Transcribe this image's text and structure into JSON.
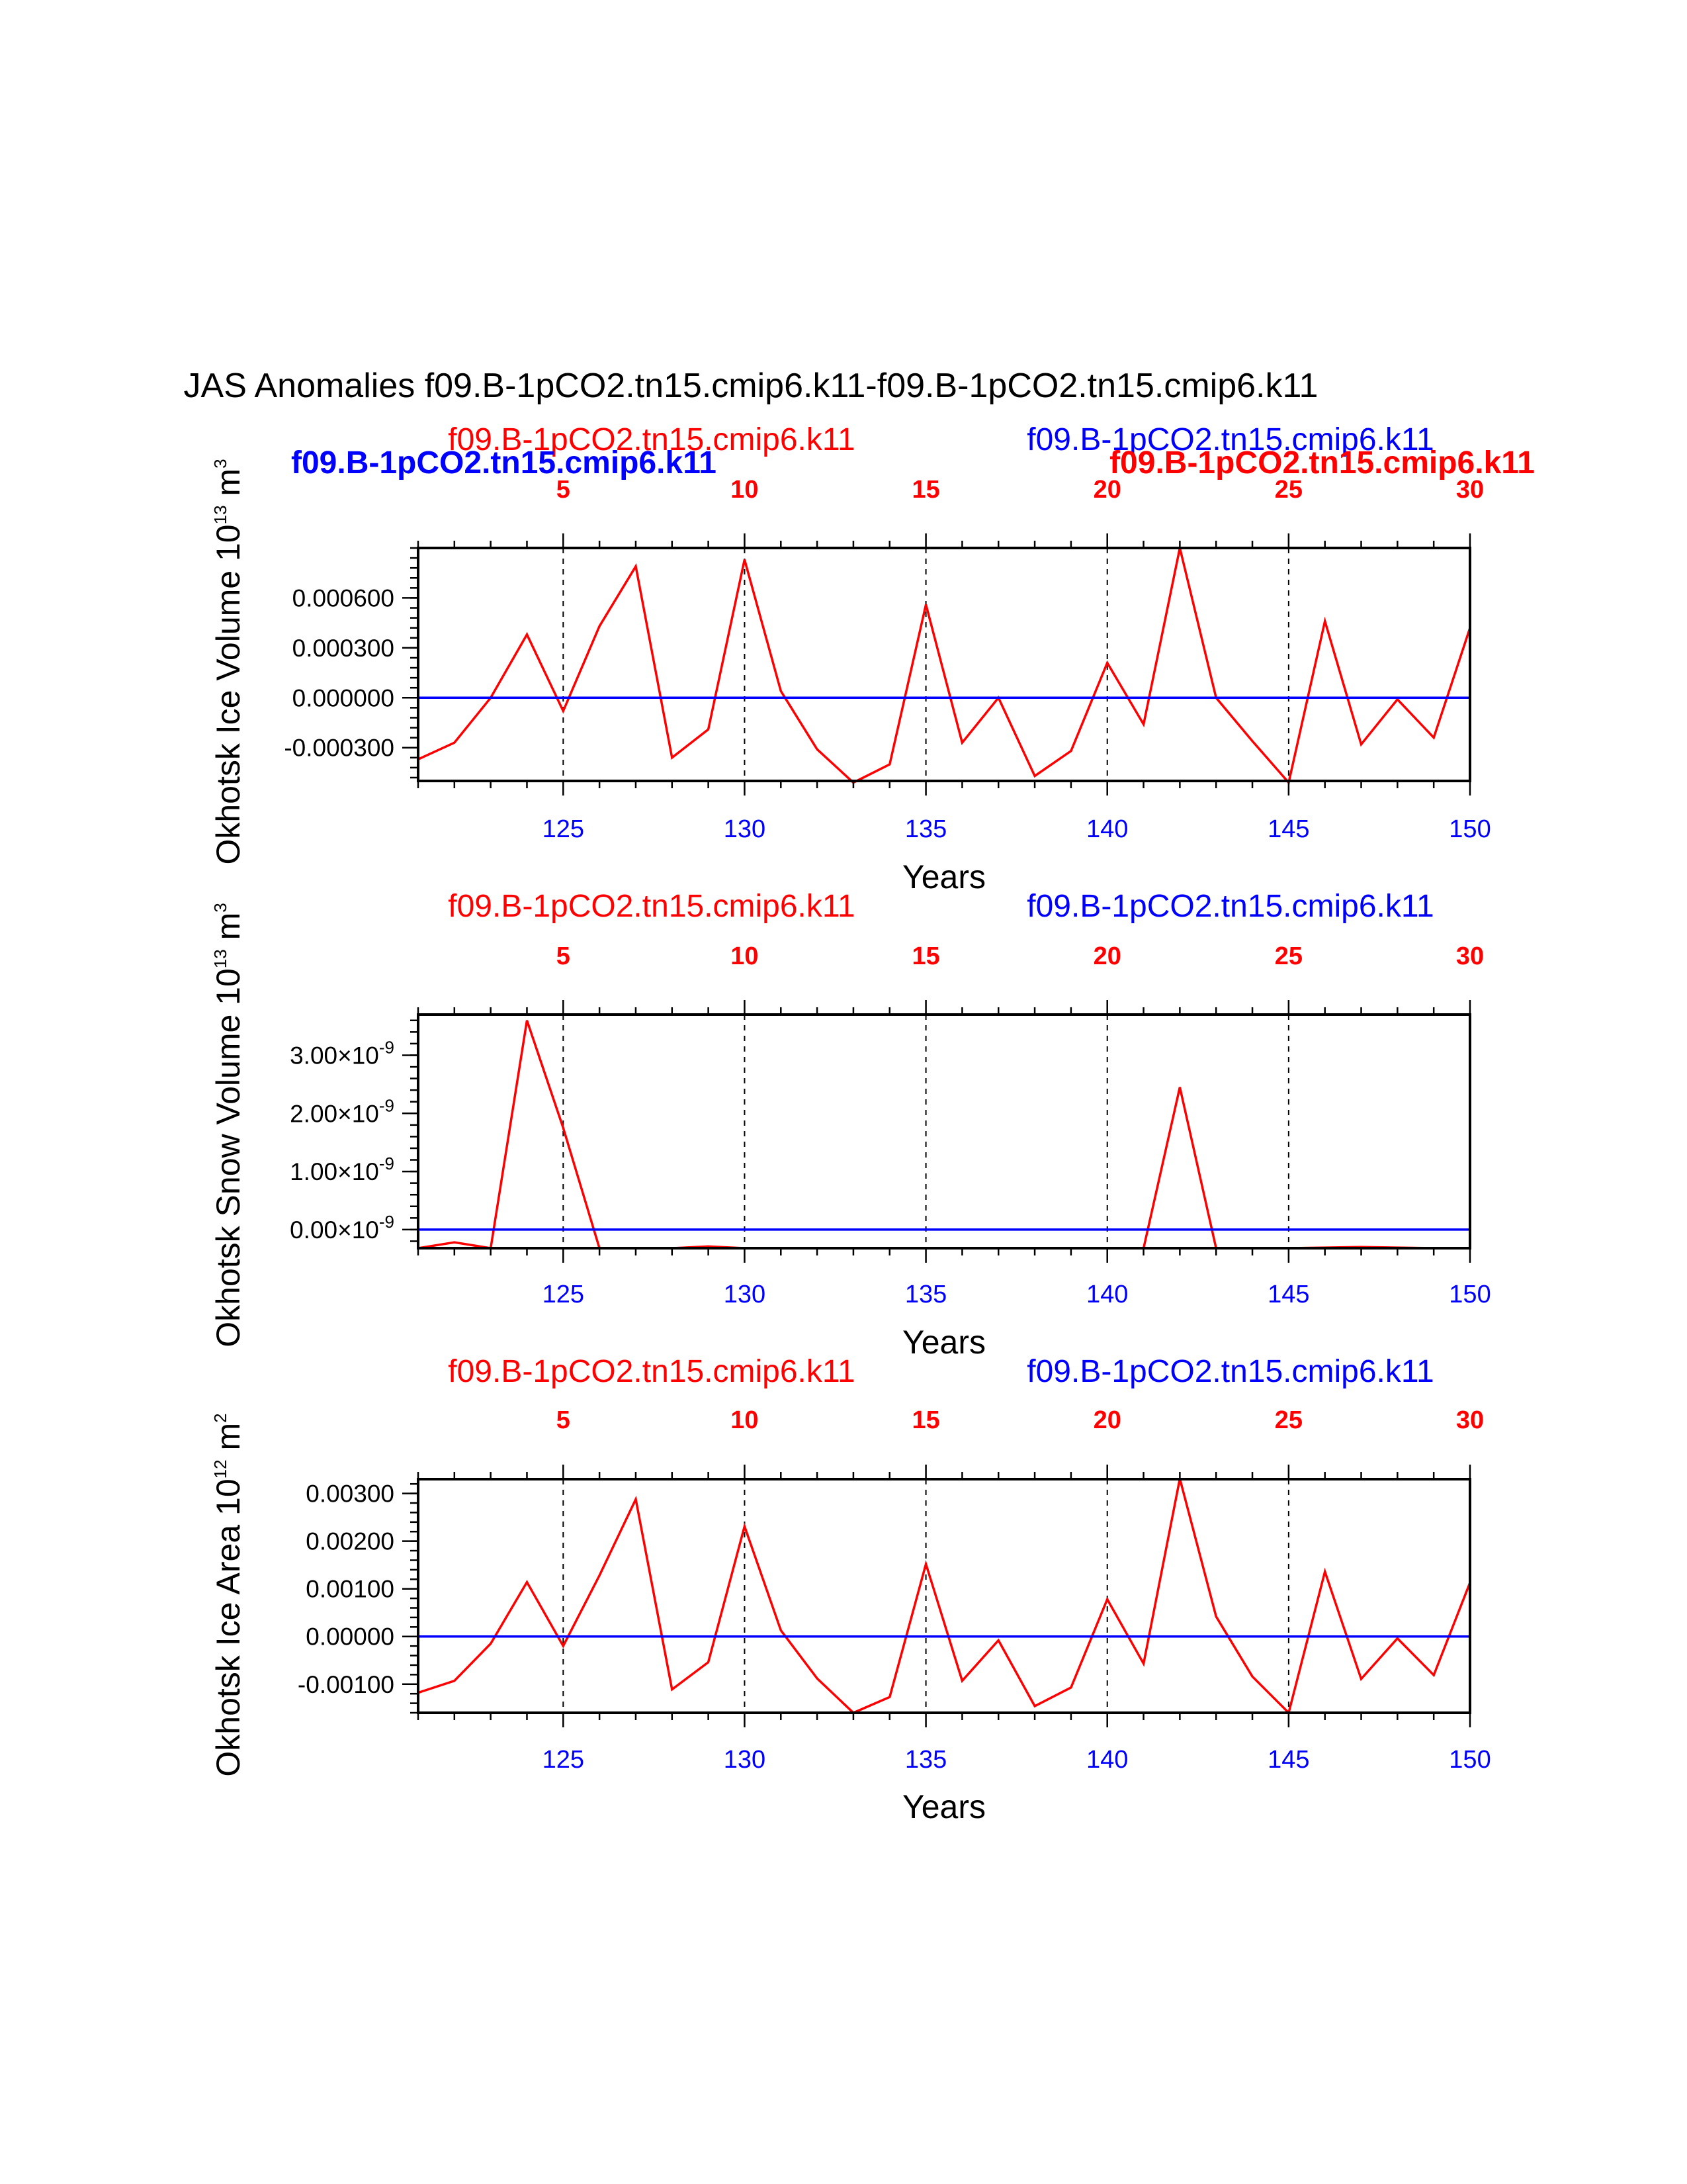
{
  "figure_title": "JAS Anomalies f09.B-1pCO2.tn15.cmip6.k11-f09.B-1pCO2.tn15.cmip6.k11",
  "overlay_labels": {
    "left_blue_bold": "f09.B-1pCO2.tn15.cmip6.k11",
    "right_red_bold": "f09.B-1pCO2.tn15.cmip6.k11"
  },
  "colors": {
    "case1": "#ff0000",
    "case2": "#0000ff",
    "axis": "#000000"
  },
  "chart_data": [
    {
      "type": "line",
      "left_label": "f09.B-1pCO2.tn15.cmip6.k11",
      "right_label": "f09.B-1pCO2.tn15.cmip6.k11",
      "ylabel": "Okhotsk Ice Volume 10^13 m^3",
      "ylabel_parts": {
        "main": "Okhotsk Ice Volume 10",
        "exp": "13",
        "unit": " m",
        "unit_exp": "3"
      },
      "xlabel": "Years",
      "x": [
        121,
        122,
        123,
        124,
        125,
        126,
        127,
        128,
        129,
        130,
        131,
        132,
        133,
        134,
        135,
        136,
        137,
        138,
        139,
        140,
        141,
        142,
        143,
        144,
        145,
        146,
        147,
        148,
        149,
        150
      ],
      "xlim": [
        121,
        150
      ],
      "ylim": [
        -0.0005,
        0.0009
      ],
      "xticks_bottom": [
        "125",
        "130",
        "135",
        "140",
        "145",
        "150"
      ],
      "xticks_top": [
        "5",
        "10",
        "15",
        "20",
        "25",
        "30"
      ],
      "yticks": [
        "0.000600",
        "0.000300",
        "0.000000",
        "-0.000300"
      ],
      "yticks_values": [
        0.0006,
        0.0003,
        0.0,
        -0.0003
      ],
      "series": [
        {
          "name": "f09.B-1pCO2.tn15.cmip6.k11 (red)",
          "color": "#ff0000",
          "values": [
            -0.00037,
            -0.00027,
            0.0,
            0.00038,
            -8e-05,
            0.00043,
            0.00079,
            -0.00036,
            -0.00019,
            0.00083,
            4e-05,
            -0.00031,
            -0.00051,
            -0.0004,
            0.00056,
            -0.00027,
            0.0,
            -0.00047,
            -0.00032,
            0.00021,
            -0.00016,
            0.0009,
            0.0,
            -0.00026,
            -0.00051,
            0.00046,
            -0.00028,
            -1e-05,
            -0.00024,
            0.00042
          ]
        },
        {
          "name": "f09.B-1pCO2.tn15.cmip6.k11 (blue)",
          "color": "#0000ff",
          "values": [
            0,
            0,
            0,
            0,
            0,
            0,
            0,
            0,
            0,
            0,
            0,
            0,
            0,
            0,
            0,
            0,
            0,
            0,
            0,
            0,
            0,
            0,
            0,
            0,
            0,
            0,
            0,
            0,
            0,
            0
          ]
        }
      ]
    },
    {
      "type": "line",
      "left_label": "f09.B-1pCO2.tn15.cmip6.k11",
      "right_label": "f09.B-1pCO2.tn15.cmip6.k11",
      "ylabel": "Okhotsk Snow Volume 10^13 m^3",
      "ylabel_parts": {
        "main": "Okhotsk Snow Volume 10",
        "exp": "13",
        "unit": " m",
        "unit_exp": "3"
      },
      "xlabel": "Years",
      "x": [
        121,
        122,
        123,
        124,
        125,
        126,
        127,
        128,
        129,
        130,
        131,
        132,
        133,
        134,
        135,
        136,
        137,
        138,
        139,
        140,
        141,
        142,
        143,
        144,
        145,
        146,
        147,
        148,
        149,
        150
      ],
      "xlim": [
        121,
        150
      ],
      "ylim": [
        -3.2e-10,
        3.7e-09
      ],
      "xticks_bottom": [
        "125",
        "130",
        "135",
        "140",
        "145",
        "150"
      ],
      "xticks_top": [
        "5",
        "10",
        "15",
        "20",
        "25",
        "30"
      ],
      "yticks": [
        "3.00×10",
        "2.00×10",
        "1.00×10",
        "0.00×10"
      ],
      "yticks_exp": "-9",
      "yticks_values": [
        3e-09,
        2e-09,
        1e-09,
        0
      ],
      "series": [
        {
          "name": "f09.B-1pCO2.tn15.cmip6.k11 (red)",
          "color": "#ff0000",
          "values": [
            -3.2e-10,
            -2.2e-10,
            -3.2e-10,
            3.6e-09,
            1.75e-09,
            -3.2e-10,
            -3.2e-10,
            -3.2e-10,
            -2.9e-10,
            -3.2e-10,
            -3.2e-10,
            -3.2e-10,
            -3.2e-10,
            -3.2e-10,
            -3.2e-10,
            -3.2e-10,
            -3.2e-10,
            -3.2e-10,
            -3.2e-10,
            -3.2e-10,
            -3.2e-10,
            2.45e-09,
            -3.2e-10,
            -3.2e-10,
            -3.2e-10,
            -3.1e-10,
            -3e-10,
            -3.1e-10,
            -3.2e-10,
            -3.2e-10
          ]
        },
        {
          "name": "f09.B-1pCO2.tn15.cmip6.k11 (blue)",
          "color": "#0000ff",
          "values": [
            0,
            0,
            0,
            0,
            0,
            0,
            0,
            0,
            0,
            0,
            0,
            0,
            0,
            0,
            0,
            0,
            0,
            0,
            0,
            0,
            0,
            0,
            0,
            0,
            0,
            0,
            0,
            0,
            0,
            0
          ]
        }
      ]
    },
    {
      "type": "line",
      "left_label": "f09.B-1pCO2.tn15.cmip6.k11",
      "right_label": "f09.B-1pCO2.tn15.cmip6.k11",
      "ylabel": "Okhotsk Ice Area 10^12 m^2",
      "ylabel_parts": {
        "main": "Okhotsk Ice Area 10",
        "exp": "12",
        "unit": " m",
        "unit_exp": "2"
      },
      "xlabel": "Years",
      "x": [
        121,
        122,
        123,
        124,
        125,
        126,
        127,
        128,
        129,
        130,
        131,
        132,
        133,
        134,
        135,
        136,
        137,
        138,
        139,
        140,
        141,
        142,
        143,
        144,
        145,
        146,
        147,
        148,
        149,
        150
      ],
      "xlim": [
        121,
        150
      ],
      "ylim": [
        -0.0016,
        0.0033
      ],
      "xticks_bottom": [
        "125",
        "130",
        "135",
        "140",
        "145",
        "150"
      ],
      "xticks_top": [
        "5",
        "10",
        "15",
        "20",
        "25",
        "30"
      ],
      "yticks": [
        "0.00300",
        "0.00200",
        "0.00100",
        "0.00000",
        "-0.00100"
      ],
      "yticks_values": [
        0.003,
        0.002,
        0.001,
        0.0,
        -0.001
      ],
      "series": [
        {
          "name": "f09.B-1pCO2.tn15.cmip6.k11 (red)",
          "color": "#ff0000",
          "values": [
            -0.00118,
            -0.00093,
            -0.00015,
            0.00114,
            -0.0002,
            0.00128,
            0.00288,
            -0.00111,
            -0.00054,
            0.00231,
            0.00013,
            -0.00088,
            -0.0016,
            -0.00127,
            0.00152,
            -0.00093,
            -8e-05,
            -0.00146,
            -0.00107,
            0.00078,
            -0.00057,
            0.00331,
            0.00042,
            -0.00084,
            -0.0016,
            0.00136,
            -0.00089,
            -4e-05,
            -0.00081,
            0.00113
          ]
        },
        {
          "name": "f09.B-1pCO2.tn15.cmip6.k11 (blue)",
          "color": "#0000ff",
          "values": [
            0,
            0,
            0,
            0,
            0,
            0,
            0,
            0,
            0,
            0,
            0,
            0,
            0,
            0,
            0,
            0,
            0,
            0,
            0,
            0,
            0,
            0,
            0,
            0,
            0,
            0,
            0,
            0,
            0,
            0
          ]
        }
      ]
    }
  ]
}
